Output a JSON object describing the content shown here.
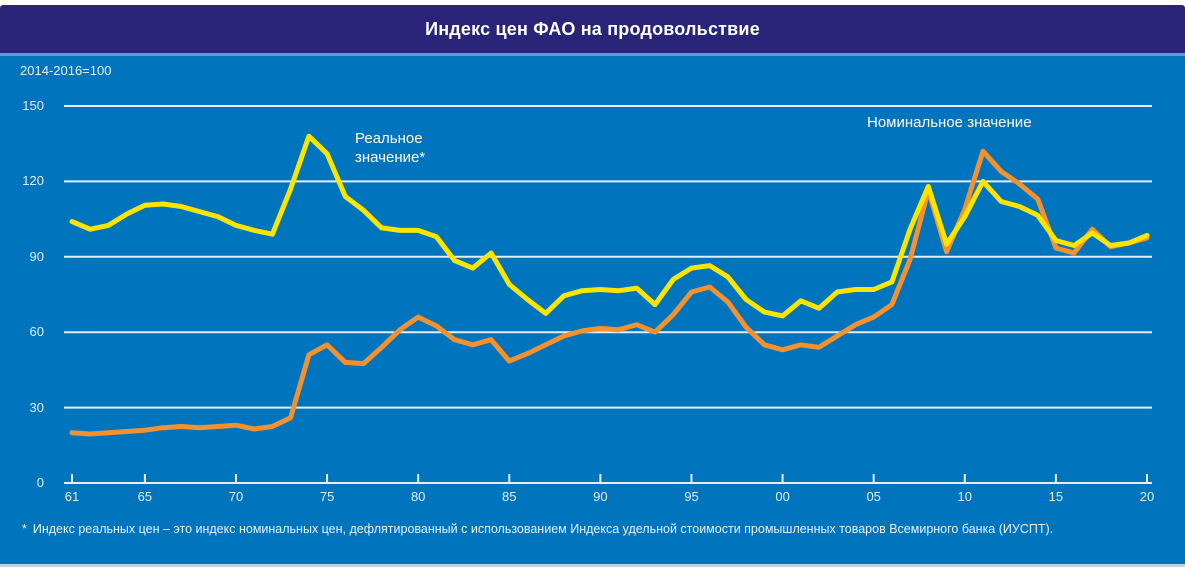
{
  "header": {
    "title": "Индекс цен ФАО на продовольствие"
  },
  "units_label": "2014-2016=100",
  "legend": {
    "real_line1": "Реальное",
    "real_line2": "значение*",
    "nominal": "Номинальное значение"
  },
  "footnote": {
    "marker": "*",
    "text": "Индекс реальных цен – это индекс номинальных цен, дефлятированный с использованием Индекса удельной стоимости промышленных товаров Всемирного банка (ИУСПТ)."
  },
  "colors": {
    "header_navy": "#2A2478",
    "chart_blue": "#0074BD",
    "accent_light_blue": "#4EA3D9",
    "grid_line": "#E4EEF6",
    "real_yellow": "#FBE400",
    "nominal_orange": "#F2912E",
    "text_light": "#E8F2F9"
  },
  "chart_data": {
    "type": "line",
    "title": "Индекс цен ФАО на продовольствие",
    "unit_note": "2014-2016=100",
    "x_start_year": 1961,
    "x_end_year": 2020,
    "x_tick_labels": [
      "61",
      "65",
      "70",
      "75",
      "80",
      "85",
      "90",
      "95",
      "00",
      "05",
      "10",
      "15",
      "20"
    ],
    "x_tick_year_indices": [
      0,
      4,
      9,
      14,
      19,
      24,
      29,
      34,
      39,
      44,
      49,
      54,
      59
    ],
    "y_ticks": [
      0,
      30,
      60,
      90,
      120,
      150
    ],
    "ylim": [
      0,
      150
    ],
    "grid": "horizontal-only",
    "legend_position": "annotations-inside-plot",
    "series": [
      {
        "name": "Номинальное значение",
        "color": "#F2912E",
        "values": [
          20,
          19.5,
          20,
          20.5,
          21,
          22,
          22.5,
          22,
          22.5,
          23,
          21.5,
          22.5,
          26,
          51,
          55,
          48,
          47.5,
          54,
          61,
          66,
          62.5,
          57,
          55,
          57,
          48.5,
          51.5,
          55,
          58.5,
          60.5,
          61.5,
          61,
          63,
          60,
          67,
          76,
          78,
          72,
          62,
          55,
          53,
          55,
          54,
          58.5,
          63,
          66,
          71,
          89,
          116.5,
          92,
          109,
          132,
          124,
          119,
          113,
          93.5,
          91.5,
          101,
          94,
          95.5,
          97.5
        ]
      },
      {
        "name": "Реальное значение*",
        "color": "#FBE400",
        "values": [
          104,
          101,
          102.5,
          107,
          110.5,
          111,
          110,
          108,
          106,
          102.5,
          100.5,
          99,
          117,
          138,
          131,
          114,
          108.5,
          101.5,
          100.5,
          100.5,
          98,
          88.5,
          85.5,
          91.5,
          79,
          73,
          67.5,
          74.5,
          76.5,
          77,
          76.5,
          77.5,
          71,
          81,
          85.5,
          86.5,
          82,
          73,
          68,
          66.5,
          72.5,
          69.5,
          76,
          77,
          77,
          80,
          101,
          118,
          95,
          106,
          120,
          112,
          110,
          106.5,
          96.5,
          94.5,
          99.5,
          94.5,
          95.5,
          98.5
        ]
      }
    ],
    "footnote": "* Индекс реальных цен – это индекс номинальных цен, дефлятированный с использованием Индекса удельной стоимости промышленных товаров Всемирного банка (ИУСПТ)."
  }
}
